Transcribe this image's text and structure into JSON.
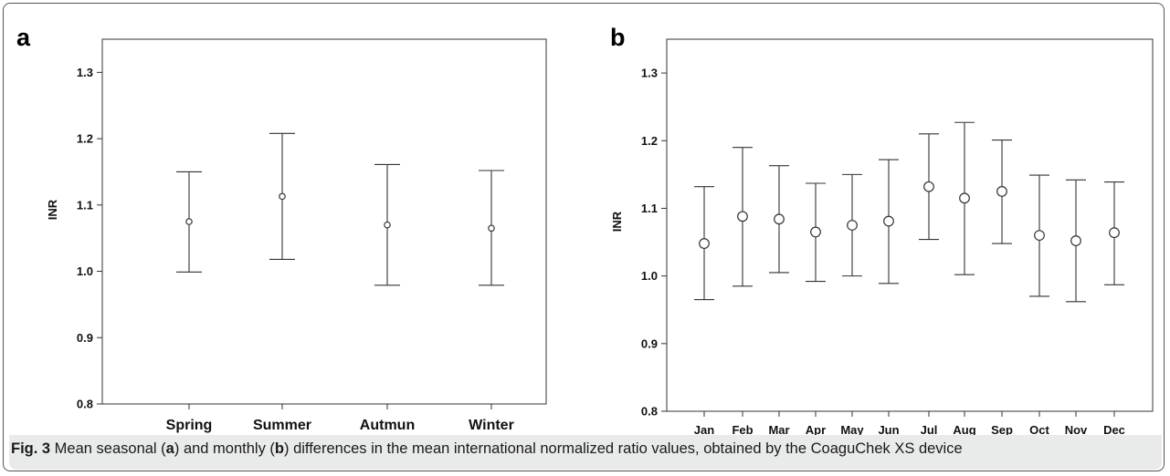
{
  "caption": {
    "fig_label": "Fig. 3",
    "part1": " Mean seasonal (",
    "a": "a",
    "part2": ") and monthly (",
    "b": "b",
    "part3": ") differences in the mean international normalized ratio values, obtained by the CoaguChek XS device"
  },
  "chart_data": [
    {
      "panel": "a",
      "type": "errorbar",
      "ylabel": "INR",
      "ylim": [
        0.8,
        1.35
      ],
      "yticks": [
        "0.8",
        "0.9",
        "1.0",
        "1.1",
        "1.2",
        "1.3"
      ],
      "categories": [
        "Spring",
        "Summer",
        "Autmun",
        "Winter"
      ],
      "mean": [
        1.075,
        1.113,
        1.07,
        1.065
      ],
      "lower": [
        0.999,
        1.018,
        0.979,
        0.979
      ],
      "upper": [
        1.15,
        1.208,
        1.161,
        1.152
      ],
      "grid": false
    },
    {
      "panel": "b",
      "type": "errorbar",
      "ylabel": "INR",
      "ylim": [
        0.8,
        1.35
      ],
      "yticks": [
        "0.8",
        "0.9",
        "1.0",
        "1.1",
        "1.2",
        "1.3"
      ],
      "categories": [
        "Jan",
        "Feb",
        "Mar",
        "Apr",
        "May",
        "Jun",
        "Jul",
        "Aug",
        "Sep",
        "Oct",
        "Nov",
        "Dec"
      ],
      "mean": [
        1.048,
        1.088,
        1.084,
        1.065,
        1.075,
        1.081,
        1.132,
        1.115,
        1.125,
        1.06,
        1.052,
        1.064
      ],
      "lower": [
        0.965,
        0.985,
        1.005,
        0.992,
        1.0,
        0.989,
        1.054,
        1.002,
        1.048,
        0.97,
        0.962,
        0.987
      ],
      "upper": [
        1.132,
        1.19,
        1.163,
        1.137,
        1.15,
        1.172,
        1.21,
        1.227,
        1.201,
        1.149,
        1.142,
        1.139
      ],
      "grid": false
    }
  ]
}
